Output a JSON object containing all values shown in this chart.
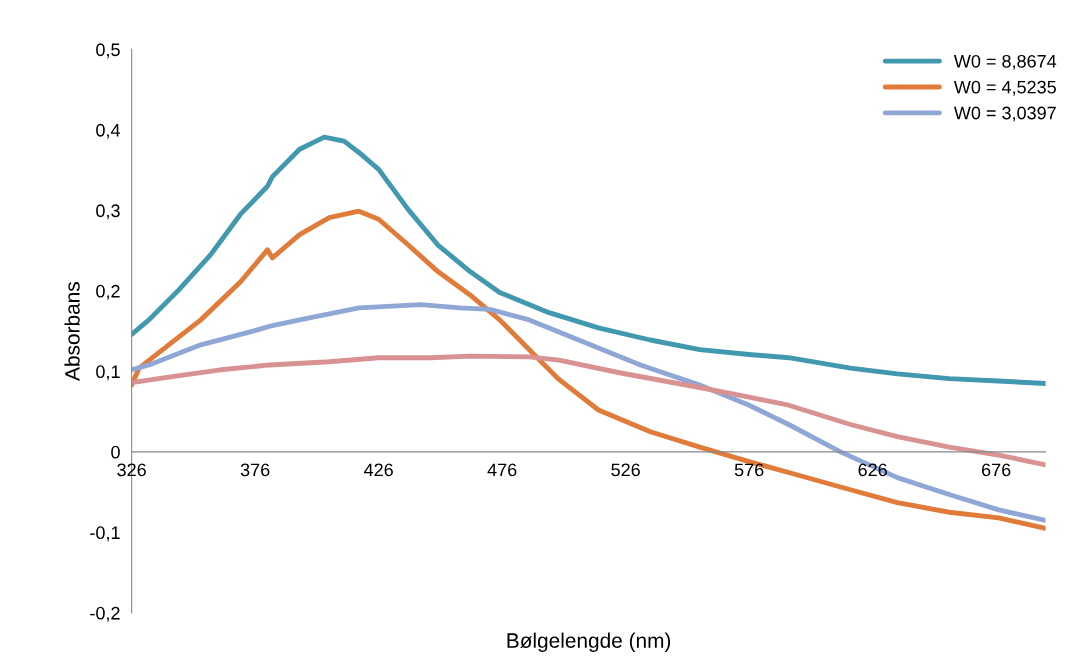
{
  "chart_data": {
    "type": "line",
    "xlabel": "Bølgelengde (nm)",
    "ylabel": "Absorbans",
    "xlim": [
      326,
      696
    ],
    "xticks": [
      326,
      376,
      426,
      476,
      526,
      576,
      626,
      676
    ],
    "ylim": [
      -0.2,
      0.5
    ],
    "yticks": [
      {
        "value": -0.2,
        "label": "-0,2"
      },
      {
        "value": -0.1,
        "label": "-0,1"
      },
      {
        "value": 0,
        "label": "0"
      },
      {
        "value": 0.1,
        "label": "0,1"
      },
      {
        "value": 0.2,
        "label": "0,2"
      },
      {
        "value": 0.3,
        "label": "0,3"
      },
      {
        "value": 0.4,
        "label": "0,4"
      },
      {
        "value": 0.5,
        "label": "0,5"
      }
    ],
    "grid": false,
    "legend": "top right",
    "marker": "none",
    "line_style": "solid",
    "series": [
      {
        "name": "W0 = 8,8674",
        "color": "#4198af",
        "x": [
          326,
          333,
          345,
          358,
          370,
          381,
          383,
          394,
          404,
          412,
          418,
          426,
          438,
          450,
          463,
          475,
          495,
          515,
          536,
          556,
          576,
          592,
          617,
          636,
          657,
          677,
          696
        ],
        "values": [
          0.146,
          0.164,
          0.201,
          0.245,
          0.295,
          0.33,
          0.342,
          0.376,
          0.391,
          0.386,
          0.372,
          0.351,
          0.301,
          0.257,
          0.224,
          0.198,
          0.173,
          0.154,
          0.139,
          0.127,
          0.121,
          0.117,
          0.104,
          0.097,
          0.091,
          0.088,
          0.085
        ]
      },
      {
        "name": "W0 = 4,5235",
        "color": "#e07b39",
        "x": [
          326,
          329,
          341,
          354,
          370,
          381,
          383,
          394,
          406,
          418,
          426,
          438,
          450,
          463,
          475,
          487,
          499,
          515,
          536,
          556,
          576,
          596,
          617,
          636,
          657,
          677,
          696
        ],
        "values": [
          0.083,
          0.104,
          0.133,
          0.164,
          0.211,
          0.251,
          0.241,
          0.27,
          0.291,
          0.299,
          0.289,
          0.257,
          0.224,
          0.195,
          0.164,
          0.127,
          0.09,
          0.052,
          0.025,
          0.006,
          -0.012,
          -0.029,
          -0.047,
          -0.063,
          -0.075,
          -0.082,
          -0.095
        ]
      },
      {
        "name": "W0 = 3,0397",
        "color": "#8fa7d5",
        "x": [
          326,
          333,
          354,
          374,
          383,
          394,
          418,
          443,
          459,
          471,
          487,
          507,
          532,
          556,
          576,
          592,
          613,
          636,
          657,
          677,
          696
        ],
        "values": [
          0.102,
          0.108,
          0.133,
          0.149,
          0.157,
          0.164,
          0.179,
          0.183,
          0.179,
          0.177,
          0.164,
          0.139,
          0.108,
          0.083,
          0.058,
          0.034,
          0.0,
          -0.032,
          -0.053,
          -0.072,
          -0.085
        ]
      },
      {
        "color": "#d99292",
        "x": [
          326,
          341,
          362,
          382,
          406,
          426,
          447,
          463,
          487,
          499,
          524,
          556,
          576,
          592,
          617,
          636,
          657,
          677,
          696
        ],
        "values": [
          0.086,
          0.093,
          0.102,
          0.108,
          0.112,
          0.117,
          0.117,
          0.119,
          0.118,
          0.114,
          0.098,
          0.08,
          0.068,
          0.058,
          0.034,
          0.019,
          0.006,
          -0.004,
          -0.016
        ]
      }
    ]
  }
}
